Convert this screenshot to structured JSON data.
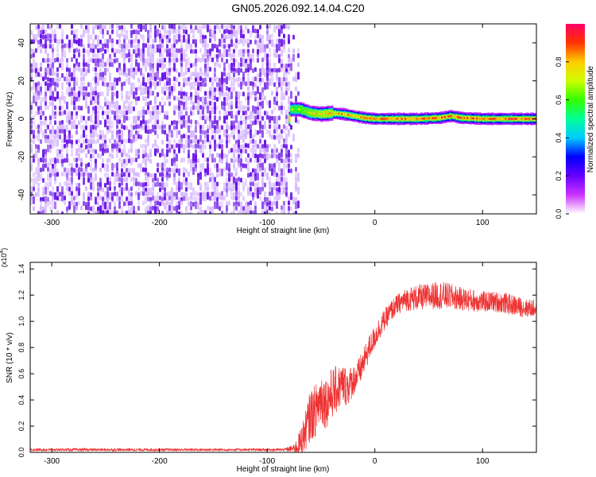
{
  "title": "GN05.2026.092.14.04.C20",
  "chart_data": [
    {
      "type": "heatmap",
      "name": "spectrogram",
      "xlabel": "Height of straight line (km)",
      "ylabel": "Frequency (Hz)",
      "xlim": [
        -320,
        150
      ],
      "ylim": [
        -50,
        50
      ],
      "x_ticks": [
        -300,
        -200,
        -100,
        0,
        100
      ],
      "y_ticks": [
        -40,
        -20,
        0,
        20,
        40
      ],
      "noise_region": {
        "x_from": -320,
        "x_to": -72,
        "freq_from": -50,
        "freq_to": 50,
        "typical_amplitude": 0.12
      },
      "signal_ridge": [
        {
          "x": -80,
          "freq": 5,
          "amplitude": 0.7
        },
        {
          "x": -70,
          "freq": 5,
          "amplitude": 0.75
        },
        {
          "x": -60,
          "freq": 3,
          "amplitude": 0.8
        },
        {
          "x": -50,
          "freq": 2.5,
          "amplitude": 0.85
        },
        {
          "x": -40,
          "freq": 3,
          "amplitude": 0.85
        },
        {
          "x": -30,
          "freq": 2.5,
          "amplitude": 0.9
        },
        {
          "x": -20,
          "freq": 1.5,
          "amplitude": 0.9
        },
        {
          "x": -10,
          "freq": 0.5,
          "amplitude": 0.95
        },
        {
          "x": 0,
          "freq": 0,
          "amplitude": 0.95
        },
        {
          "x": 20,
          "freq": 0,
          "amplitude": 0.95
        },
        {
          "x": 40,
          "freq": 0,
          "amplitude": 0.95
        },
        {
          "x": 60,
          "freq": 0.5,
          "amplitude": 0.95
        },
        {
          "x": 70,
          "freq": 1.5,
          "amplitude": 0.95
        },
        {
          "x": 80,
          "freq": 0.5,
          "amplitude": 0.95
        },
        {
          "x": 100,
          "freq": 0,
          "amplitude": 0.95
        },
        {
          "x": 120,
          "freq": 0,
          "amplitude": 0.95
        },
        {
          "x": 150,
          "freq": 0,
          "amplitude": 0.95
        }
      ],
      "colorbar": {
        "label": "Normalized spectral amplitude",
        "range": [
          0,
          1
        ],
        "ticks": [
          "0.0",
          "0.2",
          "0.4",
          "0.6",
          "0.8"
        ],
        "tick_values": [
          0,
          0.2,
          0.4,
          0.6,
          0.8
        ],
        "colors": [
          "#ffffff",
          "#cc33ff",
          "#6600ff",
          "#0000ff",
          "#00ccff",
          "#00ff99",
          "#33ff00",
          "#ccff00",
          "#ffcc00",
          "#ff3300",
          "#ff0066"
        ]
      },
      "dark_color": "#6a14e6",
      "light_color": "#d6b8ff",
      "background_color": "#ffffff"
    },
    {
      "type": "line",
      "name": "snr",
      "xlabel": "Height of straight line (km)",
      "ylabel": "SNR (10 * v/v)",
      "scale_label": "(x10",
      "scale_exponent": "4",
      "scale_close": ")",
      "xlim": [
        -320,
        150
      ],
      "ylim": [
        0,
        1.45
      ],
      "x_ticks": [
        -300,
        -200,
        -100,
        0,
        100
      ],
      "y_ticks": [
        "0.0",
        "0.2",
        "0.4",
        "0.6",
        "0.8",
        "1.0",
        "1.2",
        "1.4"
      ],
      "y_tick_values": [
        0,
        0.2,
        0.4,
        0.6,
        0.8,
        1.0,
        1.2,
        1.4
      ],
      "line_color": "#ee3333",
      "series": [
        {
          "x": [
            -320,
            -250,
            -150,
            -85,
            -75,
            -70,
            -65,
            -60,
            -55,
            -50,
            -45,
            -40,
            -35,
            -30,
            -25,
            -20,
            -15,
            -10,
            -5,
            0,
            5,
            10,
            15,
            20,
            25,
            30,
            40,
            50,
            60,
            70,
            80,
            90,
            100,
            110,
            120,
            130,
            140,
            150
          ],
          "y": [
            0.02,
            0.02,
            0.02,
            0.02,
            0.03,
            0.06,
            0.15,
            0.28,
            0.32,
            0.42,
            0.38,
            0.45,
            0.48,
            0.52,
            0.5,
            0.55,
            0.6,
            0.7,
            0.8,
            0.88,
            0.96,
            1.02,
            1.08,
            1.12,
            1.15,
            1.17,
            1.18,
            1.19,
            1.2,
            1.19,
            1.17,
            1.16,
            1.15,
            1.15,
            1.14,
            1.12,
            1.1,
            1.1
          ],
          "noise": [
            0.01,
            0.01,
            0.01,
            0.01,
            0.03,
            0.1,
            0.15,
            0.2,
            0.2,
            0.22,
            0.2,
            0.2,
            0.18,
            0.16,
            0.15,
            0.12,
            0.12,
            0.1,
            0.1,
            0.09,
            0.09,
            0.08,
            0.08,
            0.08,
            0.08,
            0.09,
            0.1,
            0.1,
            0.11,
            0.1,
            0.09,
            0.09,
            0.08,
            0.08,
            0.08,
            0.08,
            0.07,
            0.07
          ]
        }
      ]
    }
  ]
}
